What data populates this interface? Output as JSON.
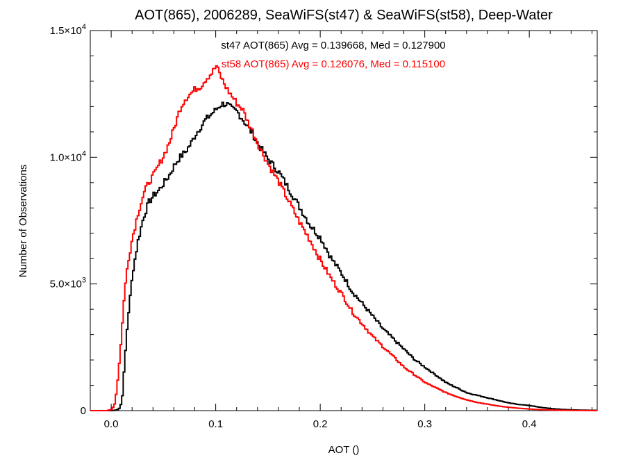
{
  "chart_data": {
    "type": "line",
    "title": "AOT(865), 2006289, SeaWiFS(st47) & SeaWiFS(st58), Deep-Water",
    "xlabel": "AOT ()",
    "ylabel": "Number of Observations",
    "xlim": [
      -0.02,
      0.465
    ],
    "ylim": [
      0,
      15000
    ],
    "x_ticks": [
      0.0,
      0.1,
      0.2,
      0.3,
      0.4
    ],
    "x_tick_labels": [
      "0.0",
      "0.1",
      "0.2",
      "0.3",
      "0.4"
    ],
    "y_ticks": [
      0,
      5000,
      10000,
      15000
    ],
    "y_tick_labels": [
      {
        "mantissa": "0",
        "exponent": ""
      },
      {
        "mantissa": "5.0×10",
        "exponent": "3"
      },
      {
        "mantissa": "1.0×10",
        "exponent": "4"
      },
      {
        "mantissa": "1.5×10",
        "exponent": "4"
      }
    ],
    "step_style": "histogram-step",
    "grid": false,
    "series": [
      {
        "name": "st47",
        "color": "#000000",
        "annotation": "st47 AOT(865) Avg = 0.139668, Med = 0.127900",
        "x": [
          -0.02,
          0.0,
          0.005,
          0.008,
          0.01,
          0.012,
          0.015,
          0.02,
          0.025,
          0.03,
          0.035,
          0.04,
          0.045,
          0.05,
          0.055,
          0.06,
          0.065,
          0.07,
          0.075,
          0.08,
          0.085,
          0.09,
          0.095,
          0.1,
          0.105,
          0.11,
          0.115,
          0.12,
          0.125,
          0.13,
          0.135,
          0.14,
          0.15,
          0.16,
          0.17,
          0.18,
          0.19,
          0.2,
          0.21,
          0.22,
          0.23,
          0.24,
          0.25,
          0.26,
          0.27,
          0.28,
          0.29,
          0.3,
          0.31,
          0.32,
          0.33,
          0.34,
          0.35,
          0.36,
          0.37,
          0.38,
          0.39,
          0.4,
          0.41,
          0.42,
          0.43,
          0.44,
          0.45,
          0.465
        ],
        "y": [
          0,
          0,
          30,
          120,
          600,
          1800,
          3500,
          5500,
          6700,
          7600,
          8200,
          8500,
          8700,
          9000,
          9300,
          9700,
          10000,
          10200,
          10500,
          10900,
          11200,
          11500,
          11700,
          11900,
          12100,
          12100,
          11900,
          11800,
          11500,
          11200,
          10900,
          10500,
          9900,
          9400,
          8700,
          8000,
          7300,
          6800,
          6000,
          5400,
          4700,
          4200,
          3700,
          3200,
          2800,
          2400,
          2000,
          1700,
          1400,
          1100,
          900,
          700,
          600,
          500,
          400,
          300,
          240,
          200,
          130,
          80,
          50,
          30,
          20,
          10
        ]
      },
      {
        "name": "st58",
        "color": "#ff0000",
        "annotation": "st58 AOT(865) Avg = 0.126076, Med = 0.115100",
        "x": [
          -0.02,
          -0.005,
          0.0,
          0.003,
          0.005,
          0.008,
          0.01,
          0.012,
          0.015,
          0.02,
          0.025,
          0.03,
          0.035,
          0.04,
          0.045,
          0.05,
          0.055,
          0.06,
          0.065,
          0.07,
          0.075,
          0.08,
          0.085,
          0.09,
          0.095,
          0.1,
          0.105,
          0.11,
          0.115,
          0.12,
          0.125,
          0.13,
          0.135,
          0.14,
          0.15,
          0.16,
          0.17,
          0.18,
          0.19,
          0.2,
          0.21,
          0.22,
          0.23,
          0.24,
          0.25,
          0.26,
          0.27,
          0.28,
          0.29,
          0.3,
          0.31,
          0.32,
          0.33,
          0.34,
          0.35,
          0.36,
          0.37,
          0.38,
          0.39,
          0.4,
          0.41,
          0.42,
          0.43,
          0.44,
          0.45,
          0.465
        ],
        "y": [
          0,
          0,
          50,
          300,
          1000,
          2300,
          3500,
          4600,
          5800,
          6900,
          7800,
          8500,
          9000,
          9300,
          9700,
          10100,
          10600,
          11200,
          11900,
          12300,
          12500,
          12700,
          12800,
          13100,
          13300,
          13600,
          13100,
          12700,
          12400,
          12100,
          11900,
          11400,
          11000,
          10500,
          9700,
          9000,
          8200,
          7400,
          6700,
          5900,
          5200,
          4600,
          3900,
          3400,
          2900,
          2500,
          2100,
          1700,
          1400,
          1100,
          900,
          700,
          550,
          420,
          320,
          250,
          180,
          130,
          90,
          60,
          40,
          25,
          15,
          10,
          5,
          0
        ]
      }
    ]
  }
}
